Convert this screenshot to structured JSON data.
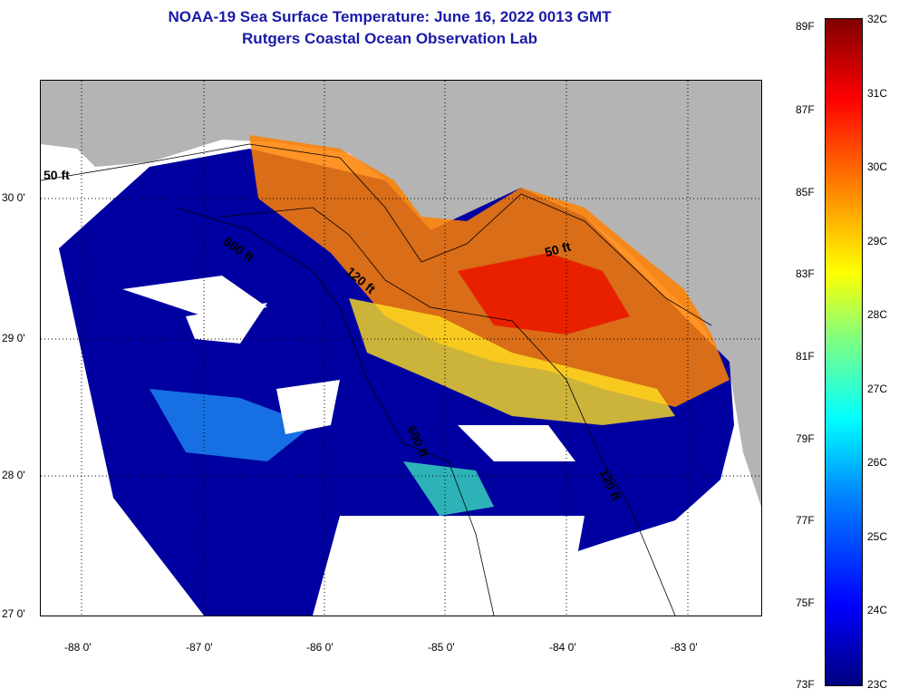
{
  "title_line1": "NOAA-19 Sea Surface Temperature:  June 16, 2022 0013 GMT",
  "title_line2": "Rutgers Coastal Ocean Observation Lab",
  "lat_labels": [
    "30 0'",
    "29 0'",
    "28 0'",
    "27 0'"
  ],
  "lon_labels": [
    "-88 0'",
    "-87 0'",
    "-86 0'",
    "-85 0'",
    "-84 0'",
    "-83 0'"
  ],
  "contour_labels": [
    "50 ft",
    "600 ft",
    "120 ft",
    "50 ft",
    "600 ft",
    "120 ft"
  ],
  "colorbar": {
    "fahrenheit": [
      "89F",
      "87F",
      "85F",
      "83F",
      "81F",
      "79F",
      "77F",
      "75F",
      "73F"
    ],
    "celsius": [
      "32C",
      "31C",
      "30C",
      "29C",
      "28C",
      "27C",
      "26C",
      "25C",
      "24C",
      "23C"
    ]
  },
  "colors": {
    "title": "#1a1aa8",
    "land": "#b4b4b4",
    "cold": "#00007f",
    "hot": "#800000"
  }
}
